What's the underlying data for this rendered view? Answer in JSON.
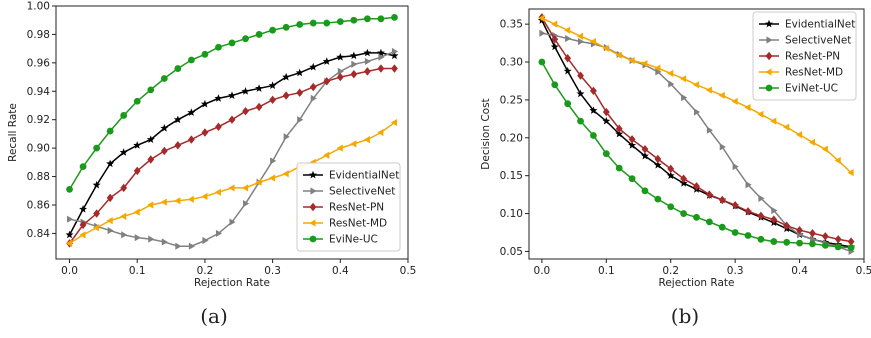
{
  "captions": [
    "(a)",
    "(b)"
  ],
  "chart_data": [
    {
      "type": "line",
      "title": "",
      "xlabel": "Rejection Rate",
      "ylabel": "Recall Rate",
      "xlim": [
        -0.02,
        0.5
      ],
      "ylim": [
        0.822,
        1.0
      ],
      "xticks": [
        "0.0",
        "0.1",
        "0.2",
        "0.3",
        "0.4",
        "0.5"
      ],
      "yticks": [
        "0.84",
        "0.86",
        "0.88",
        "0.90",
        "0.92",
        "0.94",
        "0.96",
        "0.98",
        "1.00"
      ],
      "grid": false,
      "legend_position": "lower-right",
      "x": [
        0.0,
        0.02,
        0.04,
        0.06,
        0.08,
        0.1,
        0.12,
        0.14,
        0.16,
        0.18,
        0.2,
        0.22,
        0.24,
        0.26,
        0.28,
        0.3,
        0.32,
        0.34,
        0.36,
        0.38,
        0.4,
        0.42,
        0.44,
        0.46,
        0.48
      ],
      "series": [
        {
          "name": "EvidentialNet",
          "color": "#000000",
          "marker": "star",
          "values": [
            0.839,
            0.857,
            0.874,
            0.889,
            0.897,
            0.902,
            0.906,
            0.914,
            0.92,
            0.925,
            0.931,
            0.935,
            0.937,
            0.94,
            0.942,
            0.944,
            0.95,
            0.953,
            0.957,
            0.961,
            0.964,
            0.965,
            0.967,
            0.967,
            0.965
          ]
        },
        {
          "name": "SelectiveNet",
          "color": "#808080",
          "marker": "triangle-right",
          "values": [
            0.85,
            0.848,
            0.845,
            0.842,
            0.839,
            0.837,
            0.836,
            0.834,
            0.831,
            0.831,
            0.835,
            0.84,
            0.848,
            0.861,
            0.876,
            0.891,
            0.908,
            0.92,
            0.935,
            0.947,
            0.954,
            0.959,
            0.961,
            0.964,
            0.968
          ]
        },
        {
          "name": "ResNet-PN",
          "color": "#a52a2a",
          "marker": "diamond",
          "values": [
            0.833,
            0.846,
            0.854,
            0.865,
            0.872,
            0.884,
            0.892,
            0.898,
            0.902,
            0.906,
            0.911,
            0.915,
            0.92,
            0.926,
            0.929,
            0.934,
            0.937,
            0.939,
            0.943,
            0.947,
            0.95,
            0.952,
            0.954,
            0.956,
            0.956
          ]
        },
        {
          "name": "ResNet-MD",
          "color": "#f5a800",
          "marker": "triangle-left",
          "values": [
            0.833,
            0.839,
            0.844,
            0.849,
            0.852,
            0.855,
            0.86,
            0.862,
            0.863,
            0.864,
            0.866,
            0.869,
            0.872,
            0.872,
            0.876,
            0.879,
            0.882,
            0.887,
            0.89,
            0.895,
            0.9,
            0.903,
            0.906,
            0.911,
            0.918
          ]
        },
        {
          "name": "EviNe-UC",
          "color": "#1a9a1a",
          "marker": "circle",
          "values": [
            0.871,
            0.887,
            0.9,
            0.912,
            0.923,
            0.933,
            0.941,
            0.949,
            0.956,
            0.962,
            0.966,
            0.971,
            0.974,
            0.977,
            0.98,
            0.983,
            0.985,
            0.987,
            0.988,
            0.988,
            0.989,
            0.99,
            0.991,
            0.991,
            0.992
          ]
        }
      ]
    },
    {
      "type": "line",
      "title": "",
      "xlabel": "Rejection Rate",
      "ylabel": "Decision Cost",
      "xlim": [
        -0.02,
        0.5
      ],
      "ylim": [
        0.04,
        0.37
      ],
      "xticks": [
        "0.0",
        "0.1",
        "0.2",
        "0.3",
        "0.4",
        "0.5"
      ],
      "yticks": [
        "0.05",
        "0.10",
        "0.15",
        "0.20",
        "0.25",
        "0.30",
        "0.35"
      ],
      "grid": false,
      "legend_position": "top-right",
      "x": [
        0.0,
        0.02,
        0.04,
        0.06,
        0.08,
        0.1,
        0.12,
        0.14,
        0.16,
        0.18,
        0.2,
        0.22,
        0.24,
        0.26,
        0.28,
        0.3,
        0.32,
        0.34,
        0.36,
        0.38,
        0.4,
        0.42,
        0.44,
        0.46,
        0.48
      ],
      "series": [
        {
          "name": "EvidentialNet",
          "color": "#000000",
          "marker": "star",
          "values": [
            0.355,
            0.32,
            0.288,
            0.258,
            0.236,
            0.222,
            0.205,
            0.19,
            0.176,
            0.164,
            0.15,
            0.14,
            0.132,
            0.124,
            0.118,
            0.11,
            0.102,
            0.095,
            0.088,
            0.08,
            0.072,
            0.066,
            0.062,
            0.059,
            0.056
          ]
        },
        {
          "name": "SelectiveNet",
          "color": "#808080",
          "marker": "triangle-right",
          "values": [
            0.338,
            0.335,
            0.331,
            0.327,
            0.324,
            0.319,
            0.31,
            0.302,
            0.296,
            0.287,
            0.271,
            0.253,
            0.234,
            0.21,
            0.188,
            0.162,
            0.138,
            0.12,
            0.104,
            0.084,
            0.072,
            0.066,
            0.061,
            0.056,
            0.05
          ]
        },
        {
          "name": "ResNet-PN",
          "color": "#a52a2a",
          "marker": "diamond",
          "values": [
            0.359,
            0.33,
            0.305,
            0.282,
            0.262,
            0.234,
            0.212,
            0.198,
            0.185,
            0.172,
            0.159,
            0.146,
            0.136,
            0.125,
            0.118,
            0.111,
            0.103,
            0.097,
            0.092,
            0.084,
            0.078,
            0.074,
            0.07,
            0.066,
            0.063
          ]
        },
        {
          "name": "ResNet-MD",
          "color": "#f5a800",
          "marker": "triangle-left",
          "values": [
            0.358,
            0.35,
            0.342,
            0.334,
            0.327,
            0.318,
            0.309,
            0.302,
            0.298,
            0.292,
            0.285,
            0.278,
            0.27,
            0.263,
            0.256,
            0.248,
            0.24,
            0.231,
            0.222,
            0.214,
            0.204,
            0.194,
            0.185,
            0.17,
            0.154
          ]
        },
        {
          "name": "EviNet-UC",
          "color": "#1a9a1a",
          "marker": "circle",
          "values": [
            0.3,
            0.27,
            0.245,
            0.222,
            0.203,
            0.179,
            0.16,
            0.146,
            0.13,
            0.119,
            0.109,
            0.1,
            0.095,
            0.089,
            0.082,
            0.075,
            0.071,
            0.066,
            0.063,
            0.062,
            0.061,
            0.06,
            0.058,
            0.056,
            0.055
          ]
        }
      ]
    }
  ]
}
